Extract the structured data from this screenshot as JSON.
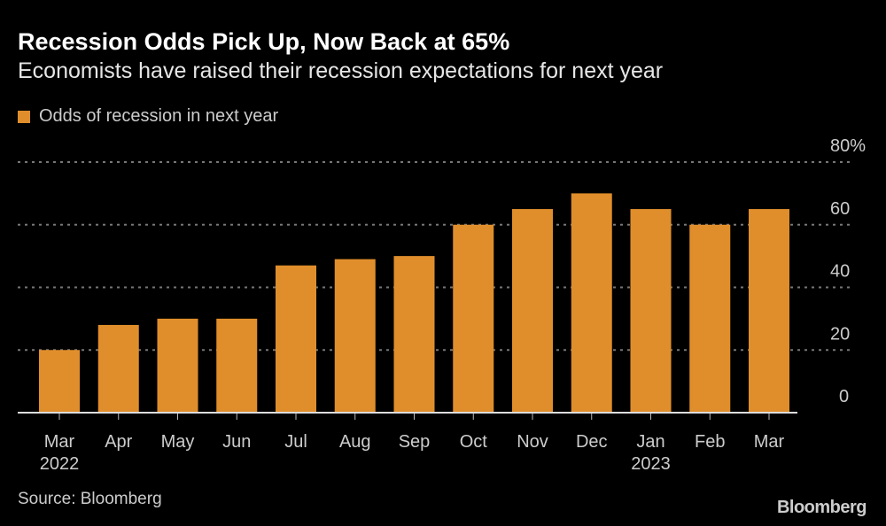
{
  "chart_data": {
    "type": "bar",
    "title": "Recession Odds Pick Up, Now Back at 65%",
    "subtitle": "Economists have raised their recession expectations for next year",
    "categories": [
      "Mar 2022",
      "Apr",
      "May",
      "Jun",
      "Jul",
      "Aug",
      "Sep",
      "Oct",
      "Nov",
      "Dec",
      "Jan 2023",
      "Feb",
      "Mar"
    ],
    "x_tick_labels": [
      [
        "Mar",
        "2022"
      ],
      [
        "Apr"
      ],
      [
        "May"
      ],
      [
        "Jun"
      ],
      [
        "Jul"
      ],
      [
        "Aug"
      ],
      [
        "Sep"
      ],
      [
        "Oct"
      ],
      [
        "Nov"
      ],
      [
        "Dec"
      ],
      [
        "Jan",
        "2023"
      ],
      [
        "Feb"
      ],
      [
        "Mar"
      ]
    ],
    "series": [
      {
        "name": "Odds of recession in next year",
        "values": [
          20,
          28,
          30,
          30,
          47,
          49,
          50,
          60,
          65,
          70,
          65,
          60,
          65
        ],
        "color": "#E08E2B"
      }
    ],
    "ylim": [
      0,
      80
    ],
    "y_ticks": [
      "0",
      "20",
      "40",
      "60",
      "80%"
    ],
    "y_tick_values": [
      0,
      20,
      40,
      60,
      80
    ],
    "y_axis_position": "right",
    "grid": true,
    "legend_placement": "top-left",
    "xlabel": "",
    "ylabel": ""
  },
  "source": "Source: Bloomberg",
  "logo": "Bloomberg"
}
